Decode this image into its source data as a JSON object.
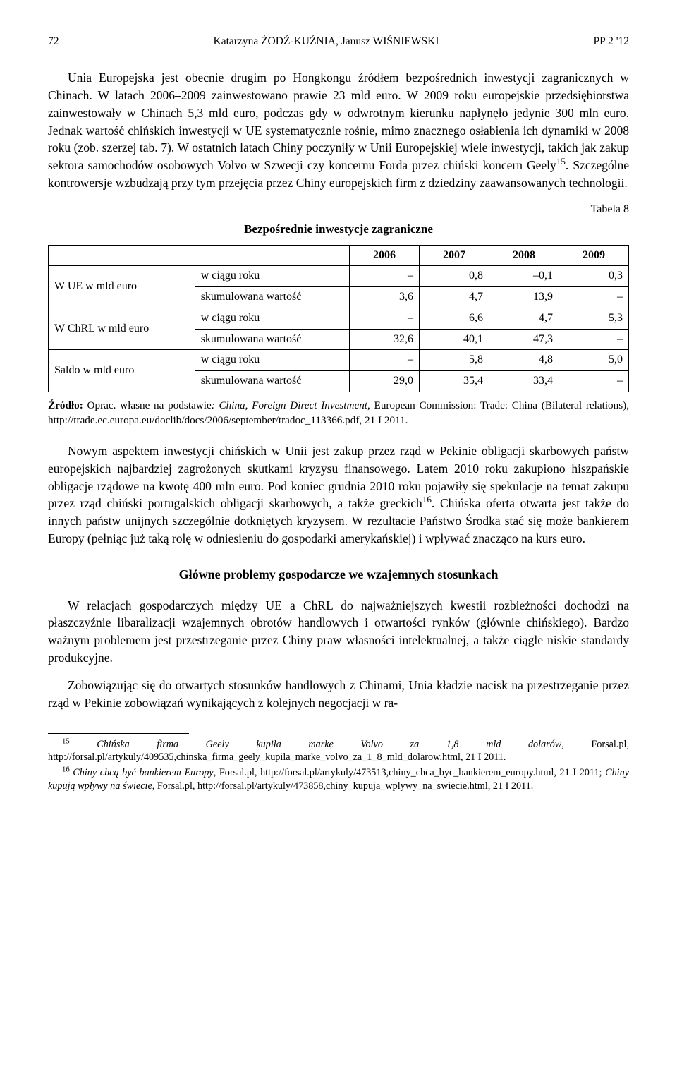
{
  "header": {
    "page_num": "72",
    "authors": "Katarzyna ŻODŹ-KUŹNIA, Janusz WIŚNIEWSKI",
    "issue": "PP 2 '12"
  },
  "paragraphs": {
    "p1": "Unia Europejska jest obecnie drugim po Hongkongu źródłem bezpośrednich inwestycji zagranicznych w Chinach. W latach 2006–2009 zainwestowano prawie 23 mld euro. W 2009 roku europejskie przedsiębiorstwa zainwestowały w Chinach 5,3 mld euro, podczas gdy w odwrotnym kierunku napłynęło jedynie 300 mln euro. Jednak wartość chińskich inwestycji w UE systematycznie rośnie, mimo znacznego osłabienia ich dynamiki w 2008 roku (zob. szerzej tab. 7). W ostatnich latach Chiny poczyniły w Unii Europejskiej wiele inwestycji, takich jak zakup sektora samochodów osobowych Volvo w Szwecji czy koncernu Forda przez chiński koncern Geely",
    "p1_sup": "15",
    "p1_tail": ". Szczególne kontrowersje wzbudzają przy tym przejęcia przez Chiny europejskich firm z dziedziny zaawansowanych technologii.",
    "p2": "Nowym aspektem inwestycji chińskich w Unii jest zakup przez rząd w Pekinie obligacji skarbowych państw europejskich najbardziej zagrożonych skutkami kryzysu finansowego. Latem 2010 roku zakupiono hiszpańskie obligacje rządowe na kwotę 400 mln euro. Pod koniec grudnia 2010 roku pojawiły się spekulacje na temat zakupu przez rząd chiński portugalskich obligacji skarbowych, a także greckich",
    "p2_sup": "16",
    "p2_tail": ". Chińska oferta otwarta jest także do innych państw unijnych szczególnie dotkniętych kryzysem. W rezultacie Państwo Środka stać się może bankierem Europy (pełniąc już taką rolę w odniesieniu do gospodarki amerykańskiej) i wpływać znacząco na kurs euro.",
    "p3": "W relacjach gospodarczych między UE a ChRL do najważniejszych kwestii rozbieżności dochodzi na płaszczyźnie libaralizacji wzajemnych obrotów handlowych i otwartości rynków (głównie chińskiego). Bardzo ważnym problemem jest przestrzeganie przez Chiny praw własności intelektualnej, a także ciągle niskie standardy produkcyjne.",
    "p4": "Zobowiązując się do otwartych stosunków handlowych z Chinami, Unia kładzie nacisk na przestrzeganie przez rząd w Pekinie zobowiązań wynikających z kolejnych negocjacji w ra-"
  },
  "table": {
    "label": "Tabela 8",
    "title": "Bezpośrednie inwestycje zagraniczne",
    "years": [
      "2006",
      "2007",
      "2008",
      "2009"
    ],
    "groups": [
      {
        "name": "W UE w mld euro",
        "rows": [
          {
            "label": "w ciągu roku",
            "cells": [
              "–",
              "0,8",
              "–0,1",
              "0,3"
            ]
          },
          {
            "label": "skumulowana wartość",
            "cells": [
              "3,6",
              "4,7",
              "13,9",
              "–"
            ]
          }
        ]
      },
      {
        "name": "W ChRL w mld euro",
        "rows": [
          {
            "label": "w ciągu roku",
            "cells": [
              "–",
              "6,6",
              "4,7",
              "5,3"
            ]
          },
          {
            "label": "skumulowana wartość",
            "cells": [
              "32,6",
              "40,1",
              "47,3",
              "–"
            ]
          }
        ]
      },
      {
        "name": "Saldo w mld euro",
        "rows": [
          {
            "label": "w ciągu roku",
            "cells": [
              "–",
              "5,8",
              "4,8",
              "5,0"
            ]
          },
          {
            "label": "skumulowana wartość",
            "cells": [
              "29,0",
              "35,4",
              "33,4",
              "–"
            ]
          }
        ]
      }
    ],
    "source_label": "Źródło:",
    "source_text_a": " Oprac. własne na podstawie",
    "source_text_i": ": China, Foreign Direct Investment",
    "source_text_b": ", European Commission: Trade: China (Bilateral relations), http://trade.ec.europa.eu/doclib/docs/2006/september/tradoc_113366.pdf, 21 I 2011."
  },
  "section_heading": "Główne problemy gospodarcze we wzajemnych stosunkach",
  "footnotes": {
    "f15_sup": "15",
    "f15_i": "Chińska firma Geely kupiła markę Volvo za 1,8 mld dolarów",
    "f15_tail": ", Forsal.pl, http://forsal.pl/artykuly/409535,chinska_firma_geely_kupila_marke_volvo_za_1_8_mld_dolarow.html, 21 I 2011.",
    "f16_sup": "16",
    "f16_i1": "Chiny chcą być bankierem Europy",
    "f16_mid": ", Forsal.pl, http://forsal.pl/artykuly/473513,chiny_chca_byc_bankierem_europy.html, 21 I 2011; ",
    "f16_i2": "Chiny kupują wpływy na świecie",
    "f16_tail": ", Forsal.pl, http://forsal.pl/artykuly/473858,chiny_kupuja_wplywy_na_swiecie.html, 21 I 2011."
  }
}
